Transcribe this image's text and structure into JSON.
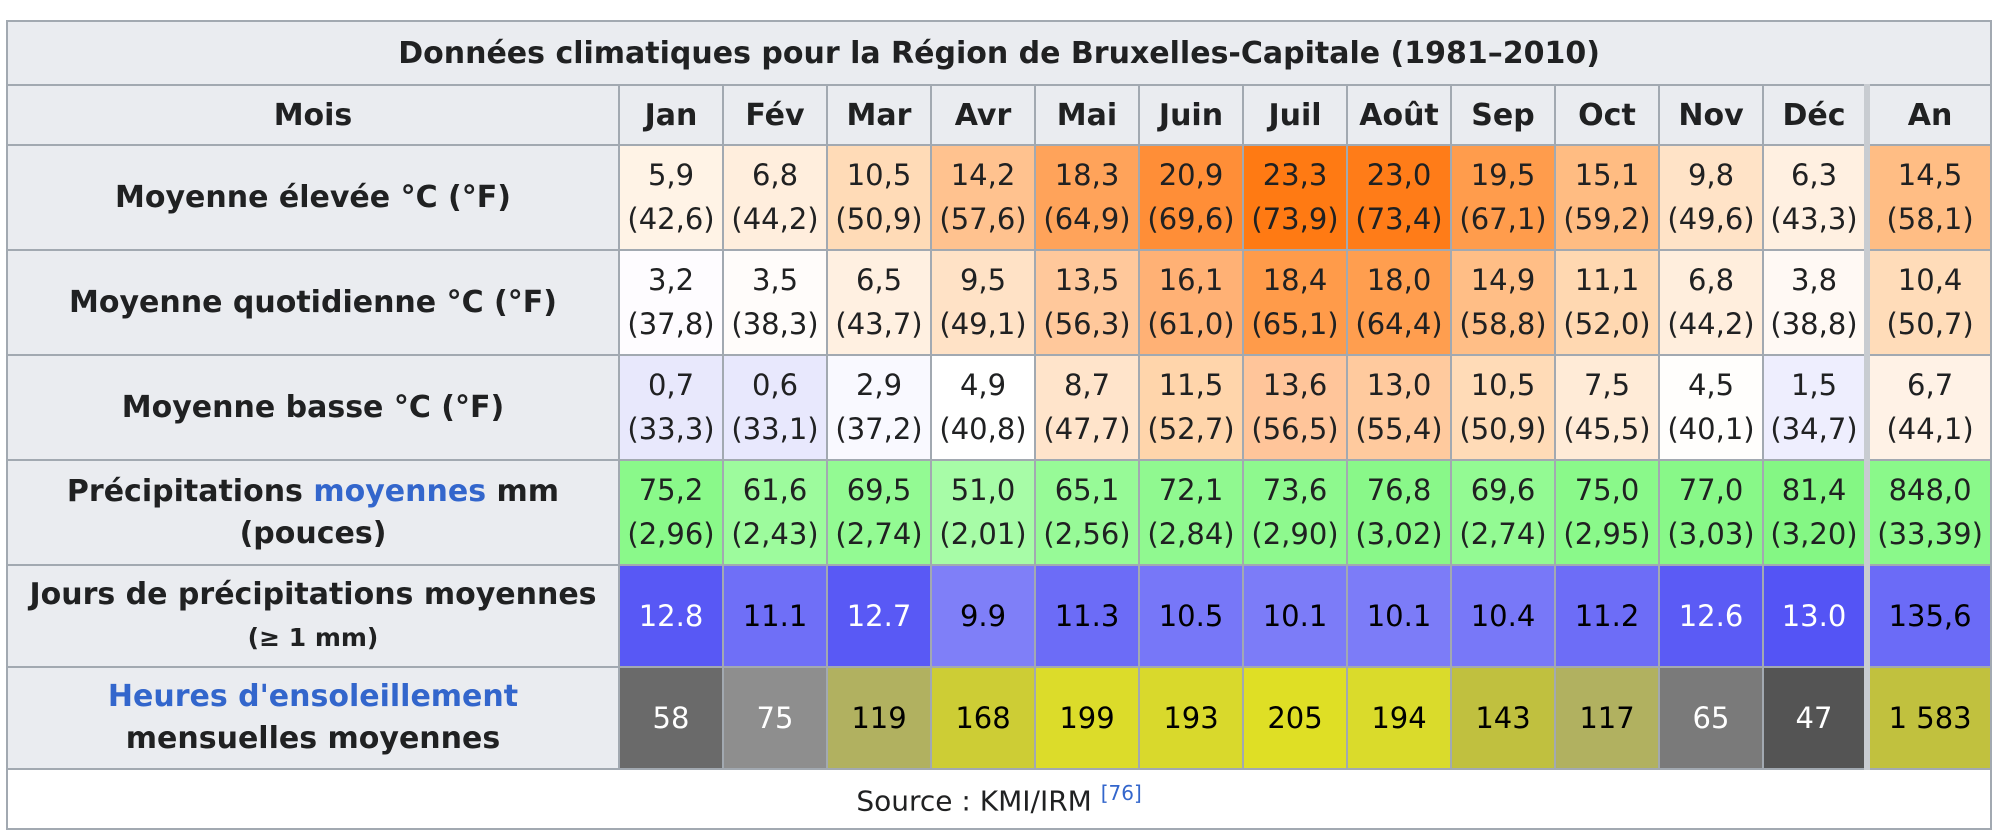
{
  "title": "Données climatiques pour la Région de Bruxelles-Capitale (1981–2010)",
  "header": {
    "label": "Mois",
    "months": [
      "Jan",
      "Fév",
      "Mar",
      "Avr",
      "Mai",
      "Juin",
      "Juil",
      "Août",
      "Sep",
      "Oct",
      "Nov",
      "Déc"
    ],
    "annual": "An"
  },
  "rows": {
    "high": {
      "label": "Moyenne élevée °C (°F)",
      "values": [
        [
          "5,9",
          "(42,6)"
        ],
        [
          "6,8",
          "(44,2)"
        ],
        [
          "10,5",
          "(50,9)"
        ],
        [
          "14,2",
          "(57,6)"
        ],
        [
          "18,3",
          "(64,9)"
        ],
        [
          "20,9",
          "(69,6)"
        ],
        [
          "23,3",
          "(73,9)"
        ],
        [
          "23,0",
          "(73,4)"
        ],
        [
          "19,5",
          "(67,1)"
        ],
        [
          "15,1",
          "(59,2)"
        ],
        [
          "9,8",
          "(49,6)"
        ],
        [
          "6,3",
          "(43,3)"
        ]
      ],
      "annual": [
        "14,5",
        "(58,1)"
      ],
      "colors": [
        "#fff3e6",
        "#ffeedd",
        "#ffdbb7",
        "#ffc28f",
        "#ffa35a",
        "#ff8e37",
        "#ff7a13",
        "#ff7c18",
        "#ff9c4c",
        "#ffbc82",
        "#ffe3c7",
        "#fff0e1"
      ],
      "annual_color": "#ffbd84"
    },
    "daily": {
      "label": "Moyenne quotidienne °C (°F)",
      "values": [
        [
          "3,2",
          "(37,8)"
        ],
        [
          "3,5",
          "(38,3)"
        ],
        [
          "6,5",
          "(43,7)"
        ],
        [
          "9,5",
          "(49,1)"
        ],
        [
          "13,5",
          "(56,3)"
        ],
        [
          "16,1",
          "(61,0)"
        ],
        [
          "18,4",
          "(65,1)"
        ],
        [
          "18,0",
          "(64,4)"
        ],
        [
          "14,9",
          "(58,8)"
        ],
        [
          "11,1",
          "(52,0)"
        ],
        [
          "6,8",
          "(44,2)"
        ],
        [
          "3,8",
          "(38,8)"
        ]
      ],
      "annual": [
        "10,4",
        "(50,7)"
      ],
      "colors": [
        "#fefcff",
        "#fffcfa",
        "#fff0e1",
        "#ffe2c6",
        "#ffc89b",
        "#ffb175",
        "#ff9b4a",
        "#ff9e4f",
        "#ffbe86",
        "#ffd8b1",
        "#ffeedd",
        "#fff9f4"
      ],
      "annual_color": "#ffdcb9"
    },
    "low": {
      "label": "Moyenne basse °C (°F)",
      "values": [
        [
          "0,7",
          "(33,3)"
        ],
        [
          "0,6",
          "(33,1)"
        ],
        [
          "2,9",
          "(37,2)"
        ],
        [
          "4,9",
          "(40,8)"
        ],
        [
          "8,7",
          "(47,7)"
        ],
        [
          "11,5",
          "(52,7)"
        ],
        [
          "13,6",
          "(56,5)"
        ],
        [
          "13,0",
          "(55,4)"
        ],
        [
          "10,5",
          "(50,9)"
        ],
        [
          "7,5",
          "(45,5)"
        ],
        [
          "4,5",
          "(40,1)"
        ],
        [
          "1,5",
          "(34,7)"
        ]
      ],
      "annual": [
        "6,7",
        "(44,1)"
      ],
      "colors": [
        "#e8e8fc",
        "#e8e8fd",
        "#f9f9ff",
        "#ffffff",
        "#ffe4cb",
        "#ffd5ab",
        "#ffc59a",
        "#ffca9e",
        "#ffdbb7",
        "#ffebd7",
        "#fffefc",
        "#eeeefe"
      ],
      "annual_color": "#fff2e6"
    },
    "precip": {
      "label_before": "Précipitations",
      "label_link": "moyennes",
      "label_after": "mm (pouces)",
      "values": [
        [
          "75,2",
          "(2,96)"
        ],
        [
          "61,6",
          "(2,43)"
        ],
        [
          "69,5",
          "(2,74)"
        ],
        [
          "51,0",
          "(2,01)"
        ],
        [
          "65,1",
          "(2,56)"
        ],
        [
          "72,1",
          "(2,84)"
        ],
        [
          "73,6",
          "(2,90)"
        ],
        [
          "76,8",
          "(3,02)"
        ],
        [
          "69,6",
          "(2,74)"
        ],
        [
          "75,0",
          "(2,95)"
        ],
        [
          "77,0",
          "(3,03)"
        ],
        [
          "81,4",
          "(3,20)"
        ]
      ],
      "annual": [
        "848,0",
        "(33,39)"
      ],
      "colors": [
        "#8af98a",
        "#9dfb9d",
        "#93fa93",
        "#a7fca7",
        "#97fa97",
        "#90f990",
        "#8ef98e",
        "#89f889",
        "#93fa93",
        "#8af98a",
        "#88f888",
        "#84f784"
      ],
      "annual_color": "#8af98a"
    },
    "days": {
      "label": "Jours de précipitations moyennes",
      "sublabel": "(≥ 1 mm)",
      "values": [
        "12.8",
        "11.1",
        "12.7",
        "9.9",
        "11.3",
        "10.5",
        "10.1",
        "10.1",
        "10.4",
        "11.2",
        "12.6",
        "13.0"
      ],
      "annual": "135,6",
      "colors": [
        "#5858f5",
        "#6f6ff7",
        "#5959f5",
        "#7f7ff8",
        "#6c6cf7",
        "#7777f8",
        "#7c7cf8",
        "#7c7cf8",
        "#7878f8",
        "#6d6df7",
        "#5b5bf5",
        "#5454f5"
      ],
      "annual_color": "#6b6bf7",
      "text_colors": [
        "#ffffff",
        "#000000",
        "#ffffff",
        "#000000",
        "#000000",
        "#000000",
        "#000000",
        "#000000",
        "#000000",
        "#000000",
        "#ffffff",
        "#ffffff"
      ],
      "annual_text_color": "#000000"
    },
    "sun": {
      "label_link": "Heures d'ensoleillement",
      "label_after": "mensuelles moyennes",
      "values": [
        "58",
        "75",
        "119",
        "168",
        "199",
        "193",
        "205",
        "194",
        "143",
        "117",
        "65",
        "47"
      ],
      "annual": "1 583",
      "colors": [
        "#6a6a6a",
        "#8e8e8e",
        "#b1b160",
        "#cdcd35",
        "#dcdc2a",
        "#d9d92c",
        "#dfdf25",
        "#dadb2b",
        "#c0c03f",
        "#b1b160",
        "#7a7a7a",
        "#545454"
      ],
      "annual_color": "#c1c13e",
      "text_colors": [
        "#ffffff",
        "#ffffff",
        "#000000",
        "#000000",
        "#000000",
        "#000000",
        "#000000",
        "#000000",
        "#000000",
        "#000000",
        "#ffffff",
        "#ffffff"
      ],
      "annual_text_color": "#000000"
    }
  },
  "source": {
    "text": "Source : KMI/IRM",
    "ref": "[76]"
  }
}
